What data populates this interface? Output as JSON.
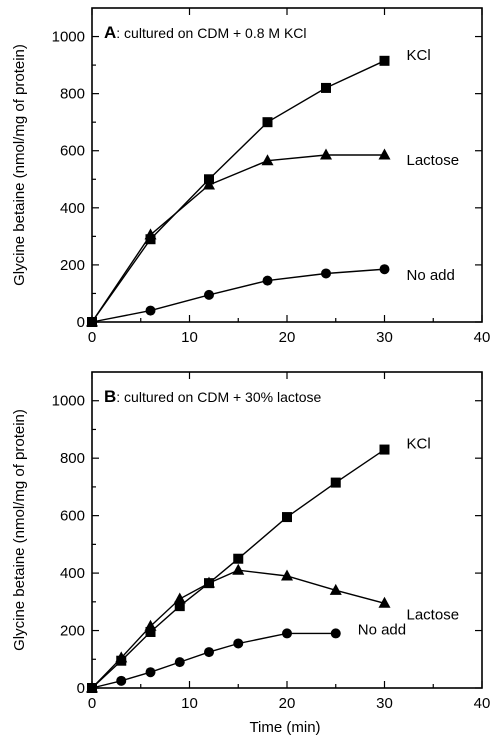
{
  "chart_data": [
    {
      "type": "line",
      "panel": "A",
      "title_letter": "A",
      "title_text": ": cultured on CDM + 0.8 M KCl",
      "xlabel": "",
      "ylabel": "Glycine betaine (nmol/mg of protein)",
      "xlim": [
        0,
        40
      ],
      "ylim": [
        0,
        1100
      ],
      "xticks": [
        0,
        10,
        20,
        30,
        40
      ],
      "yticks": [
        0,
        200,
        400,
        600,
        800,
        1000
      ],
      "series": [
        {
          "name": "KCl",
          "marker": "square",
          "x": [
            0,
            6,
            12,
            18,
            24,
            30
          ],
          "y": [
            0,
            290,
            500,
            700,
            820,
            915
          ]
        },
        {
          "name": "Lactose",
          "marker": "triangle",
          "x": [
            0,
            6,
            12,
            18,
            24,
            30
          ],
          "y": [
            0,
            305,
            480,
            565,
            585,
            585
          ]
        },
        {
          "name": "No add",
          "marker": "circle",
          "x": [
            0,
            6,
            12,
            18,
            24,
            30
          ],
          "y": [
            0,
            40,
            95,
            145,
            170,
            185
          ]
        }
      ]
    },
    {
      "type": "line",
      "panel": "B",
      "title_letter": "B",
      "title_text": ": cultured on CDM + 30% lactose",
      "xlabel": "Time (min)",
      "ylabel": "Glycine betaine (nmol/mg of protein)",
      "xlim": [
        0,
        40
      ],
      "ylim": [
        0,
        1100
      ],
      "xticks": [
        0,
        10,
        20,
        30,
        40
      ],
      "yticks": [
        0,
        200,
        400,
        600,
        800,
        1000
      ],
      "series": [
        {
          "name": "KCl",
          "marker": "square",
          "x": [
            0,
            3,
            6,
            9,
            12,
            15,
            20,
            25,
            30
          ],
          "y": [
            0,
            95,
            195,
            285,
            365,
            450,
            595,
            715,
            830
          ]
        },
        {
          "name": "Lactose",
          "marker": "triangle",
          "x": [
            0,
            3,
            6,
            9,
            12,
            15,
            20,
            25,
            30
          ],
          "y": [
            0,
            105,
            215,
            310,
            365,
            410,
            390,
            340,
            295
          ]
        },
        {
          "name": "No add",
          "marker": "circle",
          "x": [
            0,
            3,
            6,
            9,
            12,
            15,
            20,
            25
          ],
          "y": [
            0,
            25,
            55,
            90,
            125,
            155,
            190,
            190
          ]
        }
      ]
    }
  ]
}
